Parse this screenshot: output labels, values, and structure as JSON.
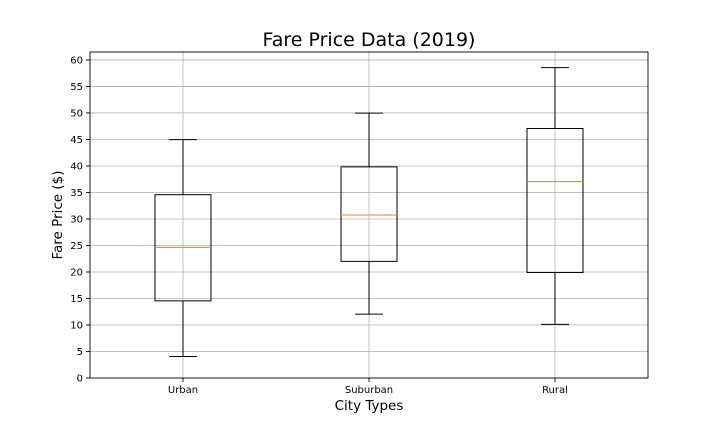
{
  "chart_data": {
    "type": "box",
    "title": "Fare Price Data (2019)",
    "xlabel": "City Types",
    "ylabel": "Fare Price ($)",
    "ylim": [
      0,
      61.5
    ],
    "yticks": [
      0,
      5,
      10,
      15,
      20,
      25,
      30,
      35,
      40,
      45,
      50,
      55,
      60
    ],
    "grid": true,
    "categories": [
      "Urban",
      "Suburban",
      "Rural"
    ],
    "boxes": [
      {
        "category": "Urban",
        "whisker_low": 4.05,
        "q1": 14.55,
        "median": 24.64,
        "q3": 34.58,
        "whisker_high": 44.97
      },
      {
        "category": "Suburban",
        "whisker_low": 12.05,
        "q1": 22.0,
        "median": 30.75,
        "q3": 39.83,
        "whisker_high": 49.96
      },
      {
        "category": "Rural",
        "whisker_low": 10.11,
        "q1": 19.9,
        "median": 37.05,
        "q3": 47.07,
        "whisker_high": 58.55
      }
    ],
    "colors": {
      "box": "#000000",
      "median": "#ff7f0e",
      "grid": "#b0b0b0"
    }
  }
}
